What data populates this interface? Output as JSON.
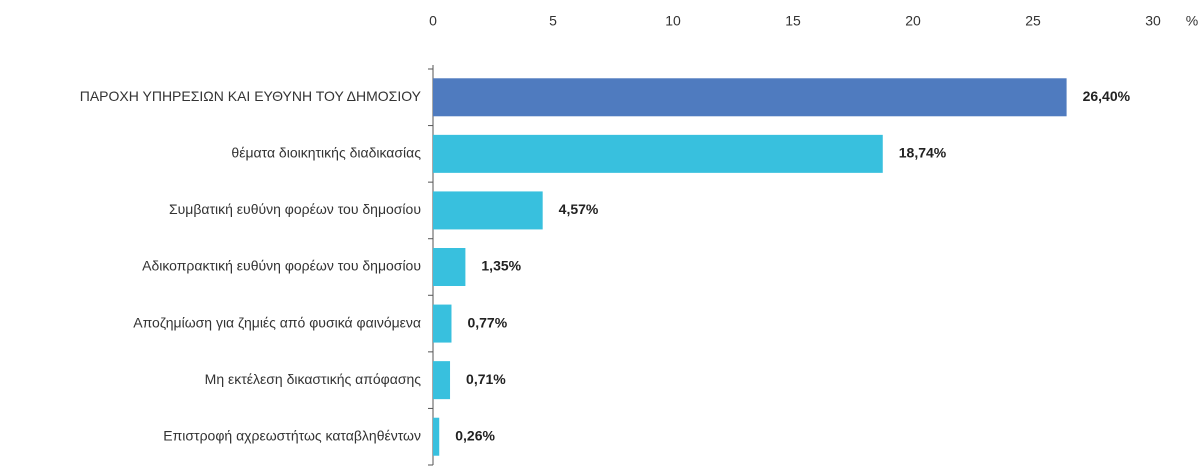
{
  "chart_data": {
    "type": "bar",
    "orientation": "horizontal",
    "categories": [
      "ΠΑΡΟΧΗ ΥΠΗΡΕΣΙΩΝ ΚΑΙ ΕΥΘΥΝΗ ΤΟΥ ΔΗΜΟΣΙΟΥ",
      "θέματα διοικητικής διαδικασίας",
      "Συμβατική ευθύνη φορέων του δημοσίου",
      "Αδικοπρακτική ευθύνη φορέων του δημοσίου",
      "Αποζημίωση για ζημιές από φυσικά φαινόμενα",
      "Μη εκτέλεση δικαστικής απόφασης",
      "Επιστροφή αχρεωστήτως καταβληθέντων"
    ],
    "values": [
      26.4,
      18.74,
      4.57,
      1.35,
      0.77,
      0.71,
      0.26
    ],
    "value_labels": [
      "26,40%",
      "18,74%",
      "4,57%",
      "1,35%",
      "0,77%",
      "0,71%",
      "0,26%"
    ],
    "colors": [
      "#4f7bbf",
      "#38c0de",
      "#38c0de",
      "#38c0de",
      "#38c0de",
      "#38c0de",
      "#38c0de"
    ],
    "xlabel": "%",
    "xlim": [
      0,
      30
    ],
    "xticks": [
      0,
      5,
      10,
      15,
      20,
      25,
      30
    ],
    "grid": false
  }
}
